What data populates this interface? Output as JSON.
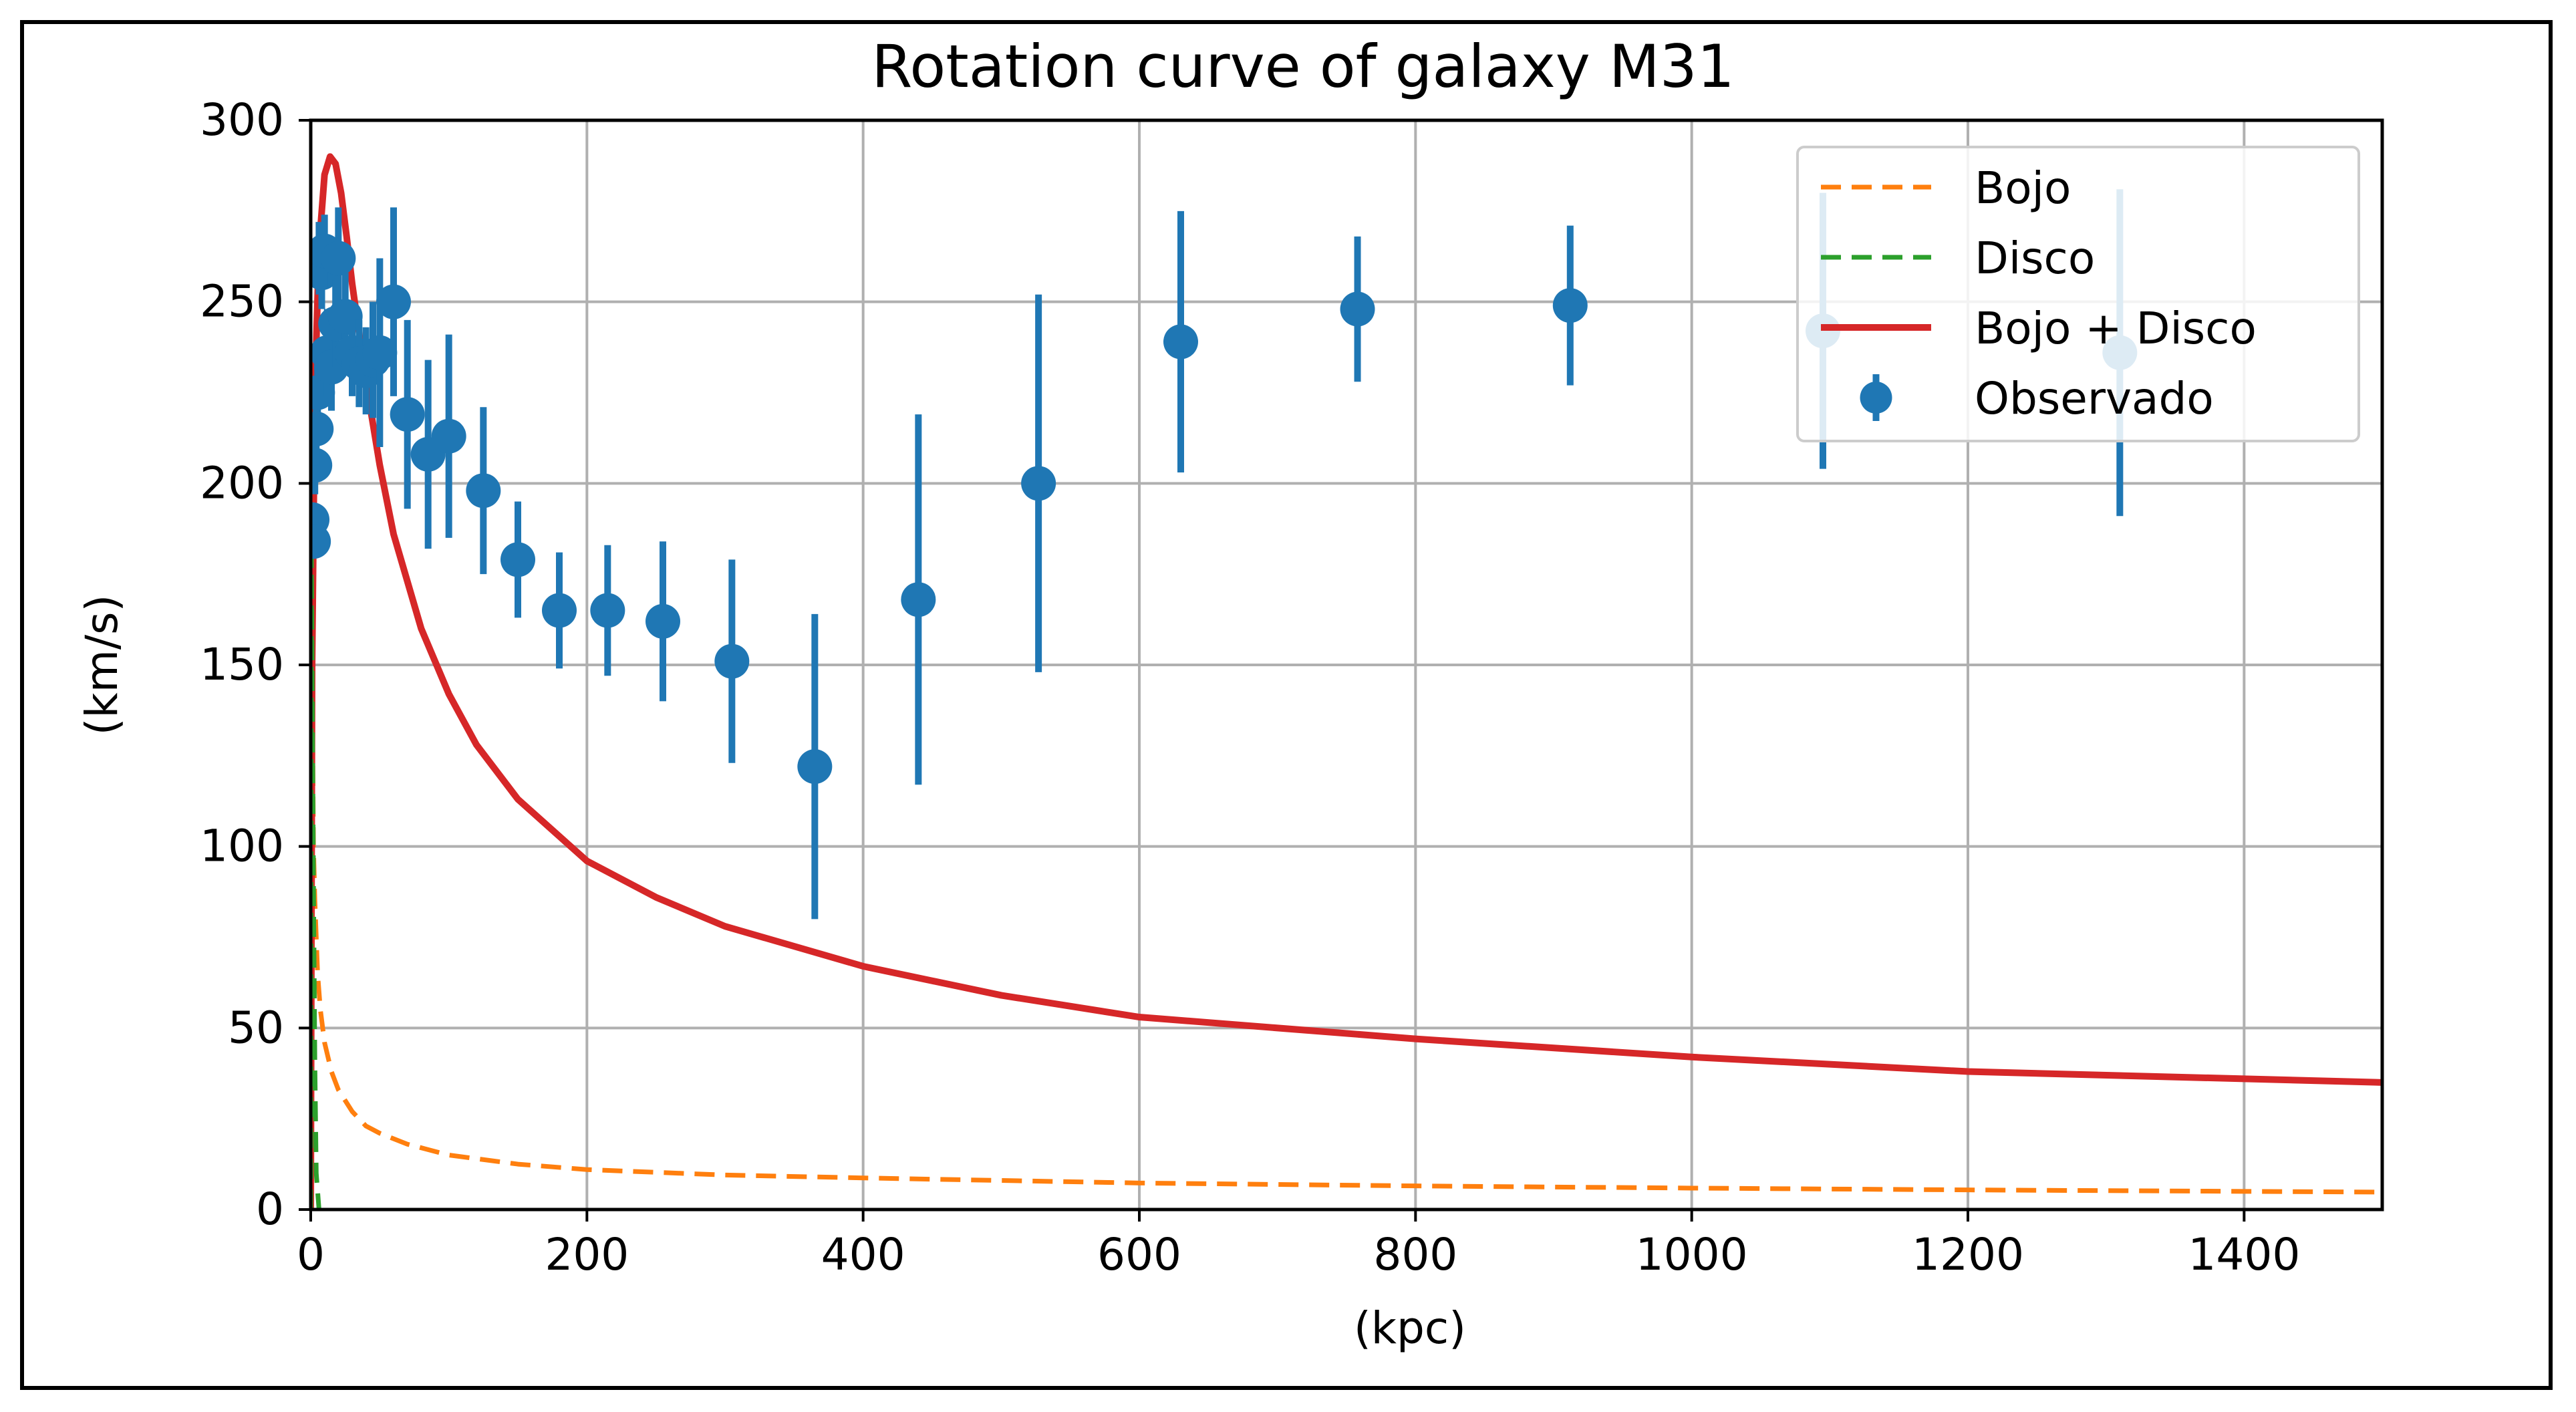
{
  "chart_data": {
    "type": "line",
    "title": "Rotation curve of galaxy M31",
    "xlabel": "(kpc)",
    "ylabel": "(km/s)",
    "xlim": [
      0,
      1500
    ],
    "ylim": [
      0,
      300
    ],
    "xticks": [
      0,
      200,
      400,
      600,
      800,
      1000,
      1200,
      1400
    ],
    "yticks": [
      0,
      50,
      100,
      150,
      200,
      250,
      300
    ],
    "grid": true,
    "legend_position": "top-right",
    "colors": {
      "bulge": "#ff7f0e",
      "disk": "#2ca02c",
      "total": "#d62728",
      "observed": "#1f77b4",
      "grid": "#b0b0b0"
    },
    "legend": [
      {
        "key": "bulge",
        "label": "Bojo",
        "style": "dashed"
      },
      {
        "key": "disk",
        "label": "Disco",
        "style": "dashed"
      },
      {
        "key": "total",
        "label": "Bojo + Disco",
        "style": "solid"
      },
      {
        "key": "observed",
        "label": "Observado",
        "style": "errorbar"
      }
    ],
    "series": [
      {
        "key": "bulge",
        "name": "Bojo",
        "x": [
          0,
          1,
          2,
          3,
          5,
          7,
          10,
          15,
          20,
          30,
          40,
          50,
          70,
          100,
          150,
          200,
          300,
          400,
          500,
          600,
          800,
          1000,
          1200,
          1400,
          1500
        ],
        "values": [
          0,
          150,
          100,
          85,
          65,
          55,
          46,
          38,
          33,
          27,
          23,
          21,
          18,
          15,
          12.5,
          11,
          9.5,
          8.7,
          8,
          7.3,
          6.5,
          5.9,
          5.4,
          5.0,
          4.8
        ]
      },
      {
        "key": "disk",
        "name": "Disco",
        "x": [
          0,
          0.5,
          1,
          1.5,
          2,
          3,
          4,
          6
        ],
        "values": [
          0,
          180,
          150,
          120,
          90,
          40,
          10,
          0
        ]
      },
      {
        "key": "total",
        "name": "Bojo + Disco",
        "x": [
          0,
          1,
          3,
          6,
          10,
          14,
          18,
          22,
          26,
          30,
          40,
          50,
          60,
          80,
          100,
          120,
          150,
          200,
          250,
          300,
          400,
          500,
          600,
          800,
          1000,
          1200,
          1400,
          1500
        ],
        "values": [
          0,
          150,
          225,
          265,
          285,
          290,
          288,
          280,
          268,
          255,
          228,
          205,
          186,
          160,
          142,
          128,
          113,
          96,
          86,
          78,
          67,
          59,
          53,
          47,
          42,
          38,
          36,
          35
        ]
      }
    ],
    "observed": {
      "name": "Observado",
      "x": [
        1,
        2,
        3,
        4,
        5,
        6,
        8,
        10,
        12,
        15,
        18,
        20,
        25,
        30,
        35,
        40,
        45,
        50,
        60,
        70,
        85,
        100,
        125,
        150,
        180,
        215,
        255,
        305,
        365,
        440,
        527,
        630,
        758,
        912,
        1095,
        1310
      ],
      "values": [
        190,
        184,
        205,
        215,
        225,
        262,
        258,
        264,
        236,
        232,
        244,
        262,
        246,
        236,
        233,
        231,
        234,
        236,
        250,
        219,
        208,
        213,
        198,
        179,
        165,
        165,
        162,
        151,
        122,
        168,
        200,
        239,
        248,
        249,
        242,
        236
      ],
      "errors": [
        4,
        4,
        8,
        10,
        8,
        10,
        10,
        10,
        12,
        12,
        12,
        14,
        12,
        12,
        12,
        12,
        16,
        26,
        26,
        26,
        26,
        28,
        23,
        16,
        16,
        18,
        22,
        28,
        42,
        51,
        52,
        36,
        20,
        22,
        38,
        45
      ]
    }
  }
}
